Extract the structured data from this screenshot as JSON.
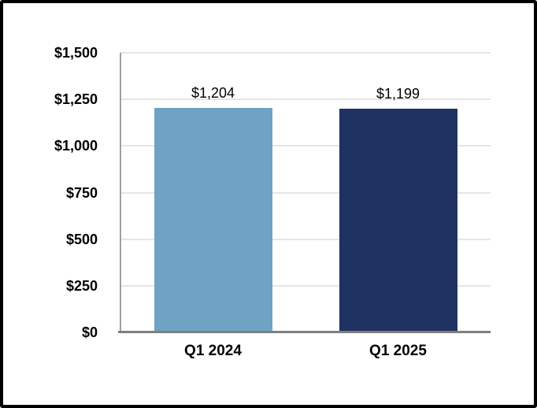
{
  "frame": {
    "background": "#FFFFFF",
    "border_color": "#000000"
  },
  "chart_data": {
    "type": "bar",
    "title": "",
    "categories": [
      "Q1 2024",
      "Q1 2025"
    ],
    "values": [
      1204,
      1199
    ],
    "value_labels": [
      "$1,204",
      "$1,199"
    ],
    "bar_colors": [
      "#6FA2C3",
      "#1F3262"
    ],
    "xlabel": "",
    "ylabel": "",
    "ylim": [
      0,
      1500
    ],
    "yticks": [
      0,
      250,
      500,
      750,
      1000,
      1250,
      1500
    ],
    "ytick_labels": [
      "$0",
      "$250",
      "$500",
      "$750",
      "$1,000",
      "$1,250",
      "$1,500"
    ],
    "grid": true,
    "legend": "none",
    "gridline_color": "#E5E5E5",
    "y_axis_line_color": "#A0A0A0",
    "x_axis_line_color": "#7F7F7F",
    "label_color": "#000000"
  }
}
